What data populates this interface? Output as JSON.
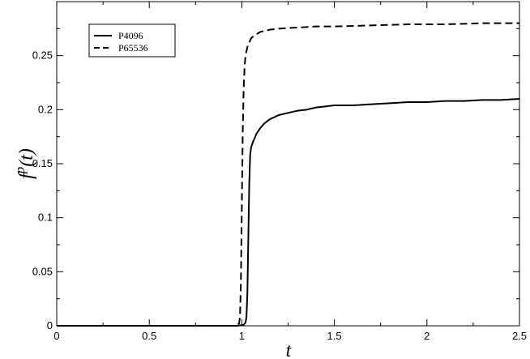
{
  "chart_data": {
    "type": "line",
    "title": "",
    "xlabel": "t",
    "ylabel_main": "f",
    "ylabel_sup": "p",
    "ylabel_tail": "(t)",
    "xlim": [
      0,
      2.5
    ],
    "ylim": [
      0,
      0.3
    ],
    "xticks": [
      0,
      0.5,
      1,
      1.5,
      2,
      2.5
    ],
    "xtick_labels": [
      "0",
      "0.5",
      "1",
      "1.5",
      "2",
      "2.5"
    ],
    "yticks": [
      0,
      0.05,
      0.1,
      0.15,
      0.2,
      0.25
    ],
    "ytick_labels": [
      "0",
      "0.05",
      "0.1",
      "0.15",
      "0.2",
      "0.25"
    ],
    "grid": false,
    "legend_position": "top-left",
    "series": [
      {
        "name": "P4096",
        "style": "solid",
        "color": "#000000",
        "x": [
          0,
          0.5,
          0.98,
          1.01,
          1.02,
          1.025,
          1.03,
          1.035,
          1.04,
          1.045,
          1.05,
          1.06,
          1.07,
          1.08,
          1.1,
          1.12,
          1.15,
          1.2,
          1.25,
          1.3,
          1.35,
          1.4,
          1.45,
          1.5,
          1.6,
          1.7,
          1.8,
          1.9,
          2.0,
          2.1,
          2.2,
          2.3,
          2.4,
          2.5
        ],
        "y": [
          0,
          0,
          0,
          0.001,
          0.003,
          0.008,
          0.03,
          0.08,
          0.13,
          0.158,
          0.165,
          0.17,
          0.174,
          0.178,
          0.183,
          0.187,
          0.191,
          0.195,
          0.197,
          0.199,
          0.2,
          0.202,
          0.203,
          0.204,
          0.204,
          0.205,
          0.206,
          0.207,
          0.207,
          0.208,
          0.208,
          0.209,
          0.209,
          0.21
        ]
      },
      {
        "name": "P65536",
        "style": "dashed",
        "color": "#000000",
        "x": [
          0,
          0.5,
          0.97,
          0.985,
          0.99,
          0.995,
          1.0,
          1.005,
          1.01,
          1.015,
          1.02,
          1.03,
          1.04,
          1.05,
          1.07,
          1.1,
          1.15,
          1.2,
          1.3,
          1.4,
          1.5,
          1.7,
          1.9,
          2.1,
          2.3,
          2.5
        ],
        "y": [
          0,
          0,
          0,
          0.002,
          0.008,
          0.04,
          0.11,
          0.18,
          0.22,
          0.24,
          0.25,
          0.258,
          0.262,
          0.266,
          0.269,
          0.272,
          0.274,
          0.275,
          0.276,
          0.277,
          0.277,
          0.278,
          0.279,
          0.279,
          0.28,
          0.28
        ]
      }
    ]
  }
}
